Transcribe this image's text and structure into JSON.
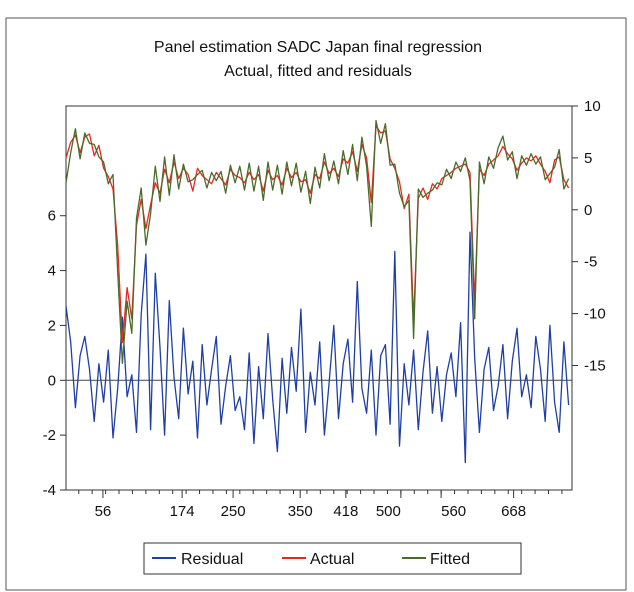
{
  "chart_data": {
    "type": "line",
    "title": "Panel estimation SADC Japan final regression",
    "subtitle": "Actual, fitted and residuals",
    "x_ticks": [
      "56",
      "174",
      "250",
      "350",
      "418",
      "500",
      "560",
      "668"
    ],
    "x_tick_values": [
      56,
      174,
      250,
      350,
      418,
      500,
      560,
      668
    ],
    "xlim": [
      1,
      755
    ],
    "right_axis": {
      "ticks": [
        "10",
        "5",
        "0",
        "-5",
        "-10",
        "-15"
      ],
      "ylim": [
        -27,
        10
      ]
    },
    "left_axis": {
      "ticks": [
        "6",
        "4",
        "2",
        "0",
        "-2",
        "-4"
      ],
      "ylim": [
        -4,
        10
      ]
    },
    "legend": {
      "placement": "bottom-center",
      "entries": [
        "Residual",
        "Actual",
        "Fitted"
      ]
    },
    "series": [
      {
        "name": "Residual",
        "axis": "left",
        "color": "#1f3fa6",
        "x": [
          1,
          8,
          15,
          22,
          29,
          36,
          43,
          50,
          57,
          64,
          71,
          78,
          85,
          92,
          99,
          106,
          113,
          120,
          127,
          134,
          141,
          148,
          155,
          162,
          169,
          176,
          183,
          190,
          197,
          204,
          211,
          218,
          225,
          232,
          239,
          246,
          253,
          260,
          267,
          274,
          281,
          288,
          295,
          302,
          309,
          316,
          323,
          330,
          337,
          344,
          351,
          358,
          365,
          372,
          379,
          386,
          393,
          400,
          407,
          414,
          421,
          428,
          435,
          442,
          449,
          456,
          463,
          470,
          477,
          484,
          491,
          498,
          505,
          512,
          519,
          526,
          533,
          540,
          547,
          554,
          561,
          568,
          575,
          582,
          589,
          596,
          603,
          610,
          617,
          624,
          631,
          638,
          645,
          652,
          659,
          666,
          673,
          680,
          687,
          694,
          701,
          708,
          715,
          722,
          729,
          736,
          743,
          750
        ],
        "values": [
          2.7,
          1.4,
          -1.0,
          0.9,
          1.6,
          0.4,
          -1.5,
          0.6,
          -0.8,
          1.1,
          -2.1,
          -0.3,
          2.3,
          -0.6,
          0.2,
          -1.9,
          2.4,
          4.6,
          -1.8,
          3.9,
          1.2,
          -2.0,
          2.9,
          0.1,
          -1.4,
          1.9,
          -0.5,
          0.7,
          -2.1,
          1.3,
          -0.9,
          0.4,
          1.6,
          -1.6,
          -0.2,
          0.9,
          -1.1,
          -0.6,
          -1.8,
          1.0,
          -2.3,
          0.5,
          -1.4,
          1.7,
          -0.7,
          -2.6,
          0.8,
          -1.2,
          1.2,
          -0.4,
          2.6,
          -1.9,
          0.3,
          -0.9,
          1.4,
          -2.0,
          -0.1,
          2.0,
          -1.4,
          0.6,
          1.5,
          -0.8,
          3.6,
          -0.3,
          -1.2,
          1.1,
          -2.0,
          0.9,
          1.3,
          -1.6,
          4.7,
          -2.4,
          0.6,
          -0.9,
          1.1,
          -1.8,
          0.3,
          1.8,
          -1.2,
          0.5,
          -1.5,
          0.2,
          1.0,
          -0.6,
          2.1,
          -3.0,
          5.4,
          0.8,
          -1.9,
          0.4,
          1.2,
          -1.1,
          -0.2,
          1.3,
          -1.4,
          0.7,
          1.9,
          -0.6,
          0.2,
          -1.0,
          1.6,
          0.4,
          -1.5,
          2.0,
          -0.8,
          -1.9,
          1.4,
          -0.9
        ]
      },
      {
        "name": "Actual",
        "axis": "right",
        "color": "#e8281e",
        "x": [
          1,
          8,
          15,
          22,
          29,
          36,
          43,
          50,
          57,
          64,
          71,
          78,
          85,
          92,
          99,
          106,
          113,
          120,
          127,
          134,
          141,
          148,
          155,
          162,
          169,
          176,
          183,
          190,
          197,
          204,
          211,
          218,
          225,
          232,
          239,
          246,
          253,
          260,
          267,
          274,
          281,
          288,
          295,
          302,
          309,
          316,
          323,
          330,
          337,
          344,
          351,
          358,
          365,
          372,
          379,
          386,
          393,
          400,
          407,
          414,
          421,
          428,
          435,
          442,
          449,
          456,
          463,
          470,
          477,
          484,
          491,
          498,
          505,
          512,
          519,
          526,
          533,
          540,
          547,
          554,
          561,
          568,
          575,
          582,
          589,
          596,
          603,
          610,
          617,
          624,
          631,
          638,
          645,
          652,
          659,
          666,
          673,
          680,
          687,
          694,
          701,
          708,
          715,
          722,
          729,
          736,
          743,
          750
        ],
        "values": [
          5.0,
          6.5,
          7.2,
          5.5,
          7.0,
          7.3,
          5.2,
          6.2,
          4.0,
          3.2,
          2.0,
          -3.5,
          -12.8,
          -7.5,
          -10.5,
          -1.5,
          1.0,
          -1.8,
          0.5,
          2.6,
          1.6,
          3.9,
          2.6,
          4.6,
          3.0,
          4.0,
          3.4,
          1.8,
          4.0,
          3.3,
          2.9,
          2.5,
          3.6,
          3.0,
          2.4,
          3.9,
          3.3,
          3.1,
          2.6,
          3.6,
          2.9,
          3.4,
          1.8,
          3.8,
          2.9,
          3.3,
          2.4,
          4.0,
          3.1,
          3.6,
          2.7,
          2.9,
          1.6,
          3.4,
          3.0,
          4.6,
          3.5,
          4.0,
          3.2,
          4.9,
          4.5,
          5.6,
          3.7,
          6.3,
          5.0,
          0.7,
          8.1,
          7.4,
          7.6,
          4.9,
          4.0,
          2.7,
          0.1,
          1.5,
          -10.7,
          1.1,
          2.1,
          1.0,
          2.5,
          2.0,
          3.0,
          3.3,
          3.6,
          4.0,
          4.2,
          4.4,
          3.6,
          -8.9,
          3.9,
          3.3,
          4.4,
          4.8,
          5.2,
          6.1,
          5.4,
          4.9,
          3.8,
          4.5,
          5.0,
          4.7,
          5.2,
          4.4,
          3.7,
          2.6,
          4.8,
          5.1,
          2.9,
          2.1
        ]
      },
      {
        "name": "Fitted",
        "axis": "right",
        "color": "#4b6b2a",
        "x": [
          1,
          8,
          15,
          22,
          29,
          36,
          43,
          50,
          57,
          64,
          71,
          78,
          85,
          92,
          99,
          106,
          113,
          120,
          127,
          134,
          141,
          148,
          155,
          162,
          169,
          176,
          183,
          190,
          197,
          204,
          211,
          218,
          225,
          232,
          239,
          246,
          253,
          260,
          267,
          274,
          281,
          288,
          295,
          302,
          309,
          316,
          323,
          330,
          337,
          344,
          351,
          358,
          365,
          372,
          379,
          386,
          393,
          400,
          407,
          414,
          421,
          428,
          435,
          442,
          449,
          456,
          463,
          470,
          477,
          484,
          491,
          498,
          505,
          512,
          519,
          526,
          533,
          540,
          547,
          554,
          561,
          568,
          575,
          582,
          589,
          596,
          603,
          610,
          617,
          624,
          631,
          638,
          645,
          652,
          659,
          666,
          673,
          680,
          687,
          694,
          701,
          708,
          715,
          722,
          729,
          736,
          743,
          750
        ],
        "values": [
          2.6,
          5.5,
          7.8,
          4.9,
          7.4,
          6.4,
          6.3,
          5.1,
          4.6,
          2.5,
          3.4,
          -6.0,
          -14.8,
          -8.8,
          -11.9,
          -0.8,
          2.1,
          -3.4,
          -0.4,
          4.2,
          0.8,
          5.1,
          1.4,
          5.3,
          2.0,
          4.4,
          2.7,
          2.9,
          3.4,
          3.8,
          2.1,
          3.6,
          2.8,
          3.7,
          1.6,
          4.3,
          2.6,
          4.2,
          1.9,
          4.5,
          1.8,
          4.2,
          0.9,
          4.6,
          1.9,
          4.3,
          1.5,
          4.6,
          2.3,
          4.5,
          1.7,
          3.7,
          0.6,
          4.1,
          2.1,
          5.4,
          2.8,
          4.7,
          2.5,
          5.7,
          3.4,
          6.3,
          2.8,
          7.0,
          4.2,
          -1.6,
          8.6,
          6.4,
          8.3,
          4.3,
          4.4,
          1.6,
          0.3,
          0.9,
          -12.4,
          2.0,
          1.2,
          1.6,
          1.9,
          2.6,
          2.4,
          3.9,
          3.0,
          4.6,
          3.7,
          5.0,
          2.8,
          -10.5,
          4.6,
          2.5,
          5.1,
          4.0,
          6.0,
          7.1,
          4.8,
          5.6,
          3.0,
          5.2,
          4.3,
          5.4,
          4.4,
          5.1,
          2.9,
          3.5,
          4.1,
          5.8,
          2.0,
          3.0
        ]
      }
    ]
  }
}
